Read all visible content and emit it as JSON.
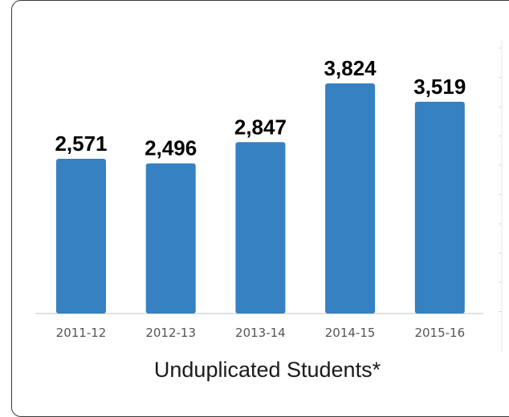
{
  "chart_data": {
    "type": "bar",
    "categories": [
      "2011-12",
      "2012-13",
      "2013-14",
      "2014-15",
      "2015-16"
    ],
    "values": [
      2571,
      2496,
      2847,
      3824,
      3519
    ],
    "value_labels": [
      "2,571",
      "2,496",
      "2,847",
      "3,824",
      "3,519"
    ],
    "title": "",
    "xlabel": "Unduplicated Students*",
    "ylabel": "",
    "ylim": [
      0,
      4300
    ],
    "grid": false,
    "legend": "none",
    "bar_color": "#3581C1"
  },
  "caption": "Unduplicated Students*"
}
